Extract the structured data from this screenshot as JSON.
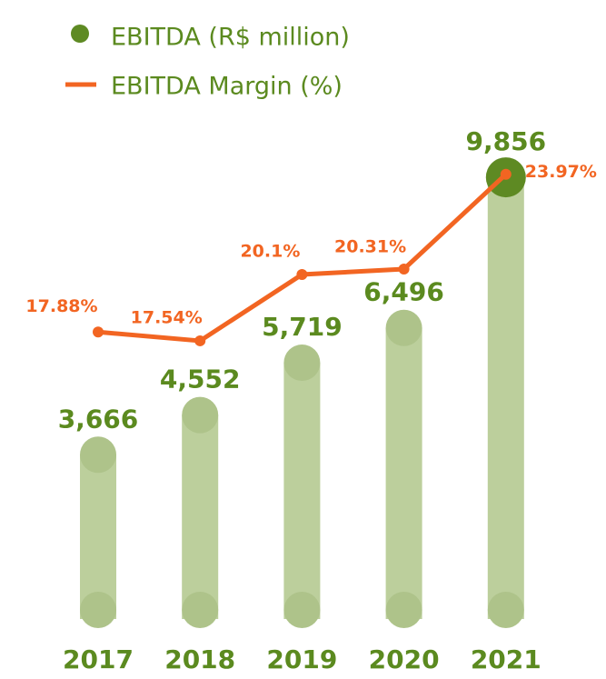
{
  "chart_data": {
    "type": "bar_line",
    "categories": [
      "2017",
      "2018",
      "2019",
      "2020",
      "2021"
    ],
    "series": [
      {
        "name": "EBITDA (R$ million)",
        "type": "bar",
        "color": "#bccf9c",
        "marker_color": "#5e8a23",
        "values": [
          3666,
          4552,
          5719,
          6496,
          9856
        ],
        "value_labels": [
          "3,666",
          "4,552",
          "5,719",
          "6,496",
          "9,856"
        ]
      },
      {
        "name": "EBITDA Margin (%)",
        "type": "line",
        "axis": "y2",
        "color": "#f26522",
        "values": [
          17.88,
          17.54,
          20.1,
          20.31,
          23.97
        ],
        "value_labels": [
          "17.88%",
          "17.54%",
          "20.1%",
          "20.31%",
          "23.97%"
        ]
      }
    ],
    "ylim": [
      0,
      10000
    ],
    "y2lim": [
      6.8,
      24.1
    ],
    "grid": false
  }
}
